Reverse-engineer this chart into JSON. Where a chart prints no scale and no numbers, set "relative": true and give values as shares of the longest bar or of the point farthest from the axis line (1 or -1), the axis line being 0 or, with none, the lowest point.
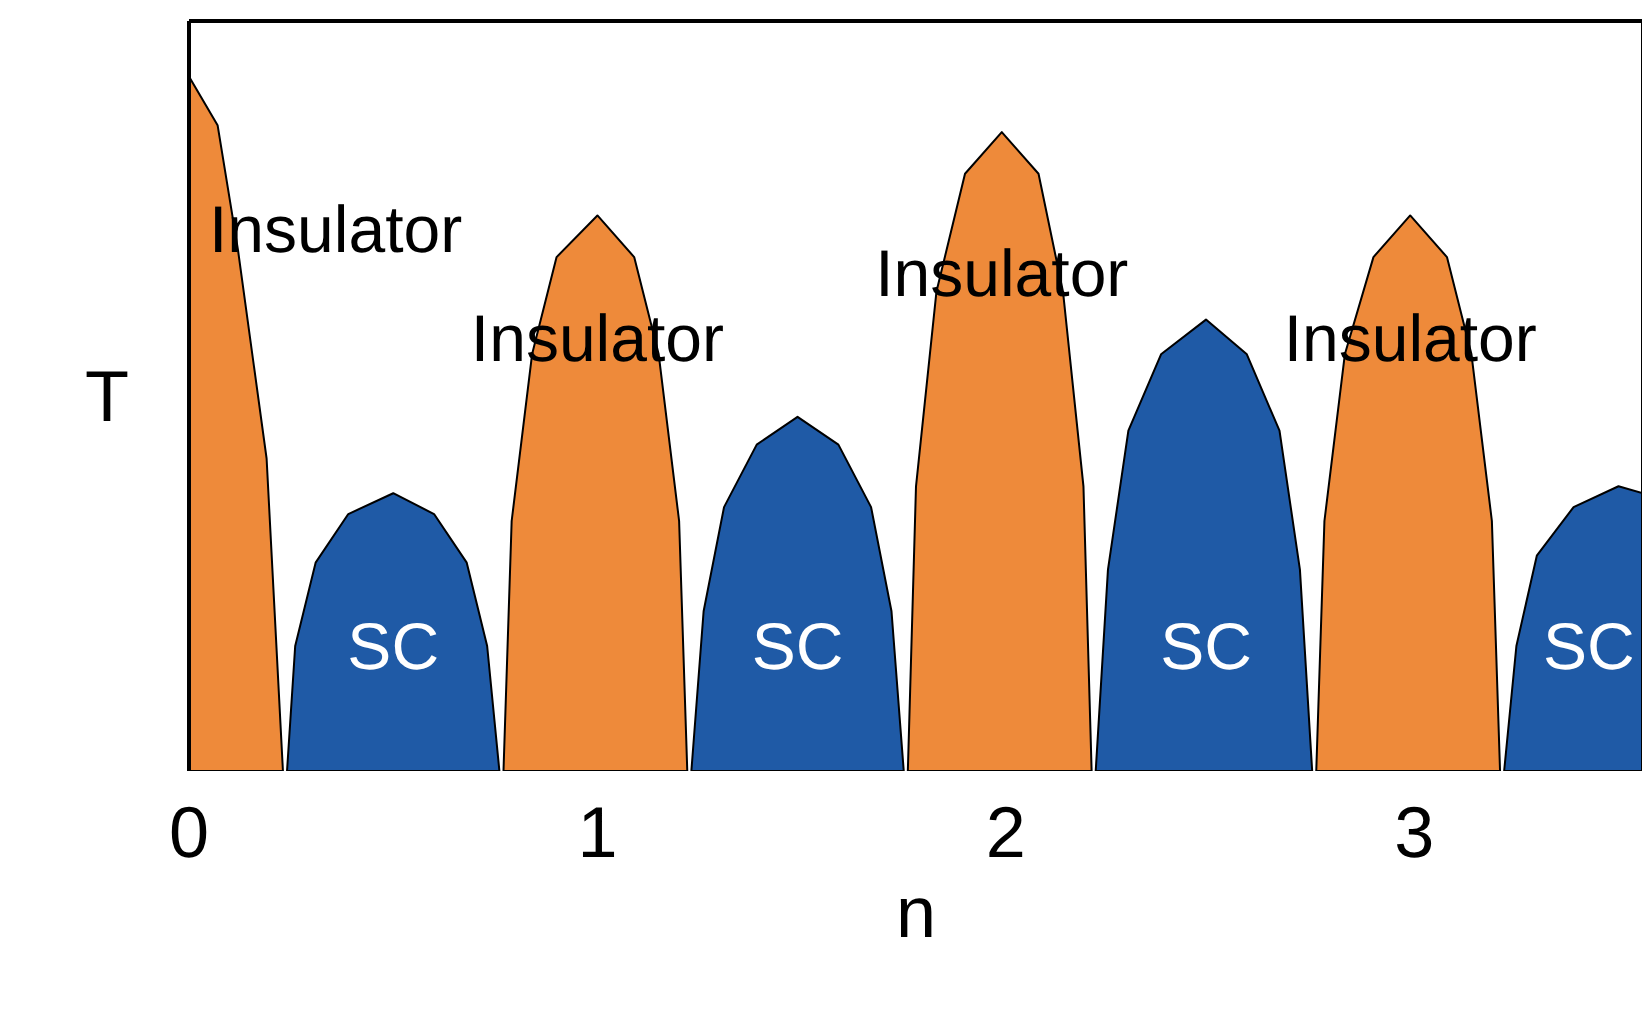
{
  "chart_data": {
    "type": "area",
    "relative": true,
    "xlabel": "n",
    "ylabel": "T",
    "xlim": [
      0,
      3.56
    ],
    "xticks": [
      0,
      1,
      2,
      3
    ],
    "grid": false,
    "legend": false,
    "series": [
      {
        "name": "Insulator",
        "color": "#ee8a3a",
        "x": [
          0,
          0.07,
          0.12,
          0.19,
          0.23
        ],
        "values": [
          1,
          0.93,
          0.75,
          0.45,
          0
        ]
      },
      {
        "name": "SC",
        "color": "#1f5aa6",
        "x": [
          0.24,
          0.26,
          0.31,
          0.39,
          0.5,
          0.6,
          0.68,
          0.73,
          0.76
        ],
        "values": [
          0,
          0.18,
          0.3,
          0.37,
          0.4,
          0.37,
          0.3,
          0.18,
          0
        ]
      },
      {
        "name": "Insulator",
        "color": "#ee8a3a",
        "x": [
          0.77,
          0.79,
          0.84,
          0.9,
          1.0,
          1.09,
          1.15,
          1.2,
          1.22
        ],
        "values": [
          0,
          0.36,
          0.6,
          0.74,
          0.8,
          0.74,
          0.6,
          0.36,
          0
        ]
      },
      {
        "name": "SC",
        "color": "#1f5aa6",
        "x": [
          1.23,
          1.26,
          1.31,
          1.39,
          1.49,
          1.59,
          1.67,
          1.72,
          1.75
        ],
        "values": [
          0,
          0.23,
          0.38,
          0.47,
          0.51,
          0.47,
          0.38,
          0.23,
          0
        ]
      },
      {
        "name": "Insulator",
        "color": "#ee8a3a",
        "x": [
          1.76,
          1.78,
          1.83,
          1.9,
          1.99,
          2.08,
          2.14,
          2.19,
          2.21
        ],
        "values": [
          0,
          0.41,
          0.69,
          0.86,
          0.92,
          0.86,
          0.69,
          0.41,
          0
        ]
      },
      {
        "name": "SC",
        "color": "#1f5aa6",
        "x": [
          2.22,
          2.25,
          2.3,
          2.38,
          2.49,
          2.59,
          2.67,
          2.72,
          2.75
        ],
        "values": [
          0,
          0.29,
          0.49,
          0.6,
          0.65,
          0.6,
          0.49,
          0.29,
          0
        ]
      },
      {
        "name": "Insulator",
        "color": "#ee8a3a",
        "x": [
          2.76,
          2.78,
          2.83,
          2.9,
          2.99,
          3.08,
          3.14,
          3.19,
          3.21
        ],
        "values": [
          0,
          0.36,
          0.6,
          0.74,
          0.8,
          0.74,
          0.6,
          0.36,
          0
        ]
      },
      {
        "name": "SC",
        "color": "#1f5aa6",
        "x": [
          3.22,
          3.25,
          3.3,
          3.39,
          3.5,
          3.56
        ],
        "values": [
          0,
          0.18,
          0.31,
          0.38,
          0.41,
          0.4
        ]
      }
    ]
  }
}
